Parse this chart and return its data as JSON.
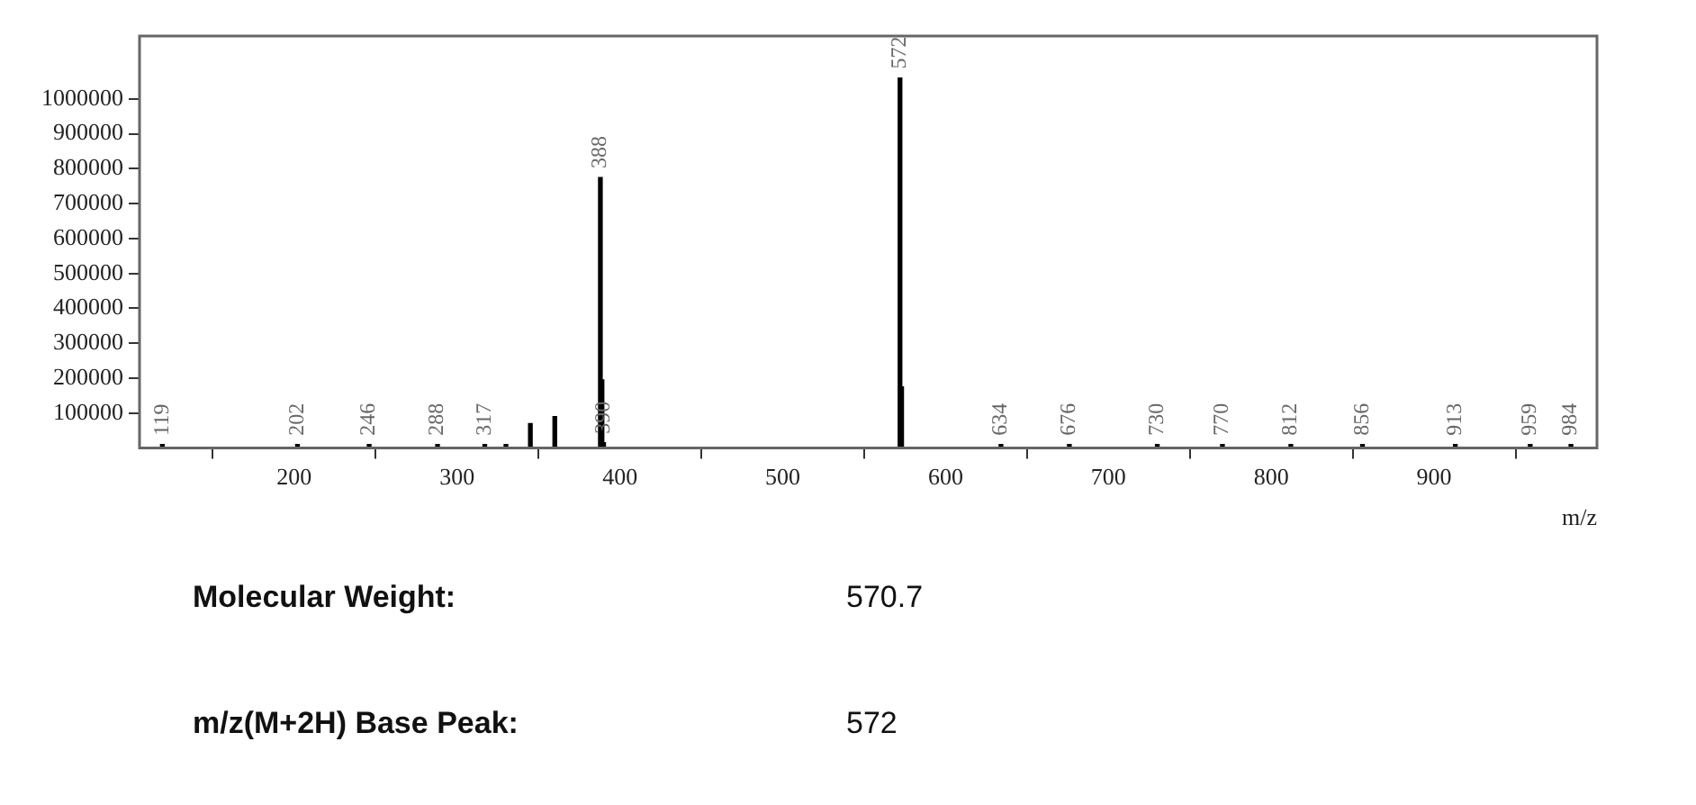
{
  "chart_data": {
    "type": "bar",
    "xlabel": "m/z",
    "x": [
      119,
      202,
      246,
      288,
      317,
      330,
      345,
      360,
      388,
      389,
      390,
      572,
      573,
      634,
      676,
      730,
      770,
      812,
      856,
      913,
      959,
      984
    ],
    "values": [
      10000,
      10000,
      10000,
      10000,
      10000,
      10000,
      70000,
      90000,
      775000,
      195000,
      15000,
      1060000,
      175000,
      10000,
      10000,
      10000,
      10000,
      10000,
      10000,
      10000,
      10000,
      10000
    ],
    "color": "#000000",
    "xlim": [
      105,
      1000
    ],
    "xticks": [
      200,
      300,
      400,
      500,
      600,
      700,
      800,
      900
    ],
    "ylim": [
      0,
      1180000
    ],
    "yticks": [
      100000,
      200000,
      300000,
      400000,
      500000,
      600000,
      700000,
      800000,
      900000,
      1000000
    ],
    "grid": false,
    "legend": false,
    "annotations": [
      {
        "text": "119",
        "x": 119,
        "y": 10000
      },
      {
        "text": "202",
        "x": 202,
        "y": 10000
      },
      {
        "text": "246",
        "x": 246,
        "y": 10000
      },
      {
        "text": "288",
        "x": 288,
        "y": 10000
      },
      {
        "text": "317",
        "x": 317,
        "y": 10000
      },
      {
        "text": "388",
        "x": 388,
        "y": 775000
      },
      {
        "text": "390",
        "x": 390,
        "y": 15000
      },
      {
        "text": "572",
        "x": 572,
        "y": 1060000
      },
      {
        "text": "634",
        "x": 634,
        "y": 10000
      },
      {
        "text": "676",
        "x": 676,
        "y": 10000
      },
      {
        "text": "730",
        "x": 730,
        "y": 10000
      },
      {
        "text": "770",
        "x": 770,
        "y": 10000
      },
      {
        "text": "812",
        "x": 812,
        "y": 10000
      },
      {
        "text": "856",
        "x": 856,
        "y": 10000
      },
      {
        "text": "913",
        "x": 913,
        "y": 10000
      },
      {
        "text": "959",
        "x": 959,
        "y": 10000
      },
      {
        "text": "984",
        "x": 984,
        "y": 10000
      },
      "Molecular Weight:",
      "570.7",
      "m/z(M+2H) Base Peak:",
      "572"
    ]
  }
}
